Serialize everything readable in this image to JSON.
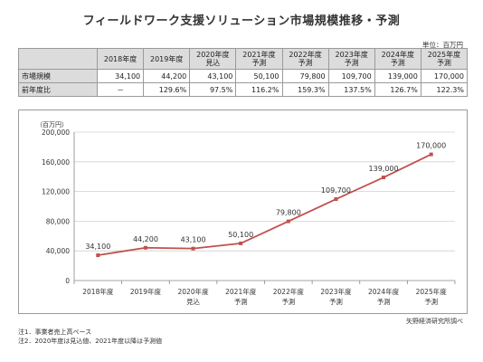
{
  "title": "フィールドワーク支援ソリューション市場規模推移・予測",
  "unit": "単位：百万円",
  "table": {
    "headers": [
      [
        "2018年度"
      ],
      [
        "2019年度"
      ],
      [
        "2020年度",
        "見込"
      ],
      [
        "2021年度",
        "予測"
      ],
      [
        "2022年度",
        "予測"
      ],
      [
        "2023年度",
        "予測"
      ],
      [
        "2024年度",
        "予測"
      ],
      [
        "2025年度",
        "予測"
      ]
    ],
    "rows": [
      {
        "label": "市場規模",
        "cells": [
          "34,100",
          "44,200",
          "43,100",
          "50,100",
          "79,800",
          "109,700",
          "139,000",
          "170,000"
        ]
      },
      {
        "label": "前年度比",
        "cells": [
          "－",
          "129.6%",
          "97.5%",
          "116.2%",
          "159.3%",
          "137.5%",
          "126.7%",
          "122.3%"
        ]
      }
    ]
  },
  "chart_data": {
    "type": "line",
    "ylabel": "（百万円）",
    "categories": [
      [
        "2018年度"
      ],
      [
        "2019年度"
      ],
      [
        "2020年度",
        "見込"
      ],
      [
        "2021年度",
        "予測"
      ],
      [
        "2022年度",
        "予測"
      ],
      [
        "2023年度",
        "予測"
      ],
      [
        "2024年度",
        "予測"
      ],
      [
        "2025年度",
        "予測"
      ]
    ],
    "values": [
      34100,
      44200,
      43100,
      50100,
      79800,
      109700,
      139000,
      170000
    ],
    "data_labels": [
      "34,100",
      "44,200",
      "43,100",
      "50,100",
      "79,800",
      "109,700",
      "139,000",
      "170,000"
    ],
    "ylim": [
      0,
      200000
    ],
    "yticks": [
      0,
      40000,
      80000,
      120000,
      160000,
      200000
    ],
    "ytick_labels": [
      "0",
      "40,000",
      "80,000",
      "120,000",
      "160,000",
      "200,000"
    ],
    "grid": true,
    "line_color": "#c0504d",
    "marker_color": "#c0504d"
  },
  "source": "矢野経済研究所調べ",
  "notes": [
    "注1．事業者売上高ベース",
    "注2．2020年度は見込値、2021年度以降は予測値"
  ]
}
